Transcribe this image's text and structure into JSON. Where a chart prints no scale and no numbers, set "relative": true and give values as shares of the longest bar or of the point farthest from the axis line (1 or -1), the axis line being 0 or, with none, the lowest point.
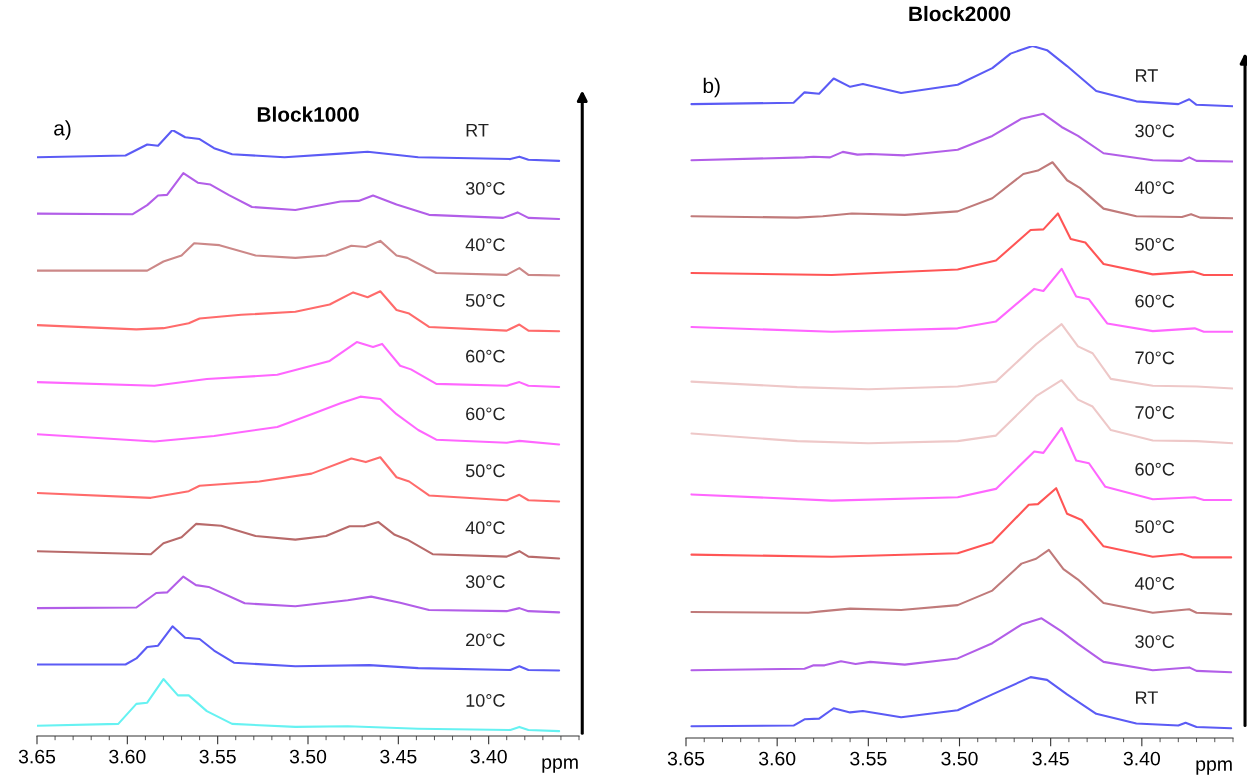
{
  "chart_data": [
    {
      "type": "line",
      "title": "Block1000",
      "xlabel": "ppm",
      "annotations": [
        "a)"
      ],
      "relative": true,
      "xlim": [
        3.65,
        3.35
      ],
      "xticks": [
        3.65,
        {
          "value": 3.6,
          "label": "3.60"
        },
        3.55,
        {
          "value": 3.5,
          "label": "3.50"
        },
        3.45,
        {
          "value": 3.4,
          "label": "3.40"
        }
      ],
      "series": [
        {
          "name": "RT",
          "color": "#5b5bf5",
          "x": [
            3.65,
            3.601,
            3.595,
            3.589,
            3.583,
            3.575,
            3.568,
            3.56,
            3.552,
            3.542,
            3.513,
            3.482,
            3.467,
            3.439,
            3.388,
            3.383,
            3.378,
            3.361
          ],
          "values": [
            0.955,
            0.958,
            0.967,
            0.976,
            0.974,
            1.0,
            0.988,
            0.985,
            0.97,
            0.96,
            0.955,
            0.961,
            0.964,
            0.955,
            0.952,
            0.956,
            0.951,
            0.949
          ]
        },
        {
          "name": "30°C",
          "color": "#b25ee8",
          "x": [
            3.65,
            3.597,
            3.589,
            3.583,
            3.578,
            3.569,
            3.561,
            3.554,
            3.544,
            3.531,
            3.507,
            3.482,
            3.472,
            3.464,
            3.451,
            3.433,
            3.392,
            3.384,
            3.378,
            3.361
          ],
          "values": [
            0.862,
            0.861,
            0.876,
            0.892,
            0.893,
            0.929,
            0.913,
            0.91,
            0.893,
            0.873,
            0.868,
            0.882,
            0.883,
            0.892,
            0.877,
            0.86,
            0.855,
            0.864,
            0.855,
            0.853
          ]
        },
        {
          "name": "40°C",
          "color": "#cc8888",
          "x": [
            3.65,
            3.589,
            3.58,
            3.57,
            3.563,
            3.549,
            3.529,
            3.507,
            3.49,
            3.476,
            3.468,
            3.46,
            3.451,
            3.445,
            3.429,
            3.39,
            3.383,
            3.378,
            3.361
          ],
          "values": [
            0.768,
            0.768,
            0.783,
            0.793,
            0.813,
            0.81,
            0.793,
            0.789,
            0.793,
            0.809,
            0.807,
            0.817,
            0.793,
            0.789,
            0.764,
            0.761,
            0.772,
            0.761,
            0.76
          ]
        },
        {
          "name": "50°C",
          "color": "#ff6b6b",
          "x": [
            3.65,
            3.595,
            3.58,
            3.566,
            3.56,
            3.537,
            3.507,
            3.488,
            3.475,
            3.467,
            3.46,
            3.451,
            3.444,
            3.433,
            3.39,
            3.383,
            3.378,
            3.361
          ],
          "values": [
            0.678,
            0.671,
            0.673,
            0.681,
            0.689,
            0.695,
            0.7,
            0.712,
            0.732,
            0.724,
            0.734,
            0.703,
            0.697,
            0.675,
            0.669,
            0.679,
            0.669,
            0.668
          ]
        },
        {
          "name": "60°C",
          "color": "#ff66ff",
          "x": [
            3.65,
            3.585,
            3.556,
            3.517,
            3.488,
            3.473,
            3.464,
            3.459,
            3.449,
            3.443,
            3.429,
            3.39,
            3.383,
            3.378,
            3.361
          ],
          "values": [
            0.584,
            0.578,
            0.589,
            0.596,
            0.619,
            0.65,
            0.642,
            0.647,
            0.611,
            0.605,
            0.581,
            0.578,
            0.584,
            0.578,
            0.576
          ]
        },
        {
          "name": "60°C",
          "color": "#ff66ff",
          "x": [
            3.65,
            3.585,
            3.552,
            3.517,
            3.498,
            3.482,
            3.471,
            3.46,
            3.451,
            3.439,
            3.429,
            3.39,
            3.383,
            3.361
          ],
          "values": [
            0.498,
            0.486,
            0.495,
            0.51,
            0.531,
            0.549,
            0.56,
            0.556,
            0.531,
            0.505,
            0.489,
            0.484,
            0.487,
            0.481
          ]
        },
        {
          "name": "50°C",
          "color": "#ff6b6b",
          "x": [
            3.65,
            3.587,
            3.566,
            3.56,
            3.527,
            3.498,
            3.476,
            3.468,
            3.46,
            3.451,
            3.444,
            3.433,
            3.39,
            3.383,
            3.378,
            3.361
          ],
          "values": [
            0.401,
            0.393,
            0.404,
            0.413,
            0.42,
            0.433,
            0.458,
            0.452,
            0.46,
            0.427,
            0.42,
            0.397,
            0.389,
            0.398,
            0.389,
            0.387
          ]
        },
        {
          "name": "40°C",
          "color": "#b86a6a",
          "x": [
            3.65,
            3.587,
            3.58,
            3.57,
            3.562,
            3.548,
            3.529,
            3.507,
            3.49,
            3.477,
            3.469,
            3.461,
            3.452,
            3.445,
            3.431,
            3.39,
            3.383,
            3.378,
            3.361
          ],
          "values": [
            0.305,
            0.3,
            0.318,
            0.328,
            0.35,
            0.347,
            0.33,
            0.324,
            0.33,
            0.346,
            0.346,
            0.353,
            0.332,
            0.324,
            0.3,
            0.296,
            0.305,
            0.296,
            0.293
          ]
        },
        {
          "name": "30°C",
          "color": "#b25ee8",
          "x": [
            3.65,
            3.595,
            3.584,
            3.578,
            3.569,
            3.562,
            3.555,
            3.535,
            3.507,
            3.478,
            3.465,
            3.449,
            3.433,
            3.39,
            3.383,
            3.378,
            3.361
          ],
          "values": [
            0.211,
            0.212,
            0.236,
            0.237,
            0.263,
            0.249,
            0.246,
            0.219,
            0.214,
            0.224,
            0.23,
            0.22,
            0.208,
            0.206,
            0.211,
            0.206,
            0.204
          ]
        },
        {
          "name": "20°C",
          "color": "#5b5bf5",
          "x": [
            3.65,
            3.601,
            3.595,
            3.589,
            3.583,
            3.575,
            3.568,
            3.56,
            3.552,
            3.541,
            3.507,
            3.466,
            3.439,
            3.388,
            3.383,
            3.378,
            3.361
          ],
          "values": [
            0.118,
            0.118,
            0.128,
            0.147,
            0.149,
            0.181,
            0.162,
            0.16,
            0.141,
            0.121,
            0.115,
            0.117,
            0.112,
            0.109,
            0.115,
            0.109,
            0.108
          ]
        },
        {
          "name": "10°C",
          "color": "#66f2f2",
          "x": [
            3.65,
            3.605,
            3.595,
            3.589,
            3.58,
            3.572,
            3.566,
            3.556,
            3.542,
            3.507,
            3.478,
            3.439,
            3.388,
            3.383,
            3.378,
            3.361
          ],
          "values": [
            0.017,
            0.02,
            0.053,
            0.055,
            0.094,
            0.067,
            0.067,
            0.041,
            0.02,
            0.015,
            0.016,
            0.012,
            0.01,
            0.015,
            0.01,
            0.008
          ]
        }
      ]
    },
    {
      "type": "line",
      "title": "Block2000",
      "xlabel": "ppm",
      "annotations": [
        "b)"
      ],
      "relative": true,
      "xlim": [
        3.65,
        3.35
      ],
      "xticks": [
        3.65,
        {
          "value": 3.6,
          "label": "3.60"
        },
        3.55,
        {
          "value": 3.5,
          "label": "3.50"
        },
        3.45,
        {
          "value": 3.4,
          "label": "3.40"
        }
      ],
      "series": [
        {
          "name": "RT",
          "color": "#5b5bf5",
          "x": [
            3.647,
            3.591,
            3.585,
            3.577,
            3.569,
            3.56,
            3.553,
            3.532,
            3.501,
            3.482,
            3.472,
            3.46,
            3.452,
            3.441,
            3.425,
            3.403,
            3.38,
            3.374,
            3.37,
            3.35
          ],
          "values": [
            0.916,
            0.918,
            0.933,
            0.931,
            0.953,
            0.941,
            0.945,
            0.932,
            0.944,
            0.968,
            0.989,
            1.0,
            0.994,
            0.971,
            0.935,
            0.92,
            0.916,
            0.923,
            0.915,
            0.913
          ]
        },
        {
          "name": "30°C",
          "color": "#b25ee8",
          "x": [
            3.647,
            3.585,
            3.58,
            3.571,
            3.564,
            3.556,
            3.549,
            3.53,
            3.501,
            3.482,
            3.466,
            3.454,
            3.444,
            3.435,
            3.421,
            3.394,
            3.378,
            3.374,
            3.37,
            3.35
          ],
          "values": [
            0.835,
            0.839,
            0.84,
            0.839,
            0.847,
            0.843,
            0.844,
            0.842,
            0.85,
            0.87,
            0.895,
            0.902,
            0.883,
            0.87,
            0.845,
            0.835,
            0.834,
            0.839,
            0.834,
            0.833
          ]
        },
        {
          "name": "40°C",
          "color": "#c07a7a",
          "x": [
            3.647,
            3.589,
            3.575,
            3.559,
            3.53,
            3.501,
            3.482,
            3.465,
            3.457,
            3.449,
            3.441,
            3.434,
            3.421,
            3.403,
            3.378,
            3.373,
            3.368,
            3.35
          ],
          "values": [
            0.754,
            0.752,
            0.754,
            0.758,
            0.756,
            0.761,
            0.78,
            0.815,
            0.82,
            0.832,
            0.806,
            0.795,
            0.765,
            0.754,
            0.753,
            0.757,
            0.752,
            0.751
          ]
        },
        {
          "name": "50°C",
          "color": "#ff5555",
          "x": [
            3.647,
            3.57,
            3.546,
            3.501,
            3.48,
            3.461,
            3.454,
            3.446,
            3.439,
            3.431,
            3.421,
            3.394,
            3.372,
            3.366,
            3.35
          ],
          "values": [
            0.672,
            0.669,
            0.672,
            0.677,
            0.69,
            0.734,
            0.735,
            0.758,
            0.721,
            0.716,
            0.685,
            0.67,
            0.674,
            0.669,
            0.669
          ]
        },
        {
          "name": "60°C",
          "color": "#ff66ff",
          "x": [
            3.647,
            3.57,
            3.501,
            3.48,
            3.459,
            3.454,
            3.444,
            3.436,
            3.429,
            3.419,
            3.394,
            3.371,
            3.366,
            3.35
          ],
          "values": [
            0.594,
            0.587,
            0.592,
            0.602,
            0.649,
            0.646,
            0.678,
            0.638,
            0.634,
            0.599,
            0.588,
            0.592,
            0.587,
            0.587
          ]
        },
        {
          "name": "70°C",
          "color": "#eec8c8",
          "x": [
            3.647,
            3.589,
            3.55,
            3.501,
            3.48,
            3.458,
            3.444,
            3.435,
            3.427,
            3.417,
            3.394,
            3.37,
            3.35
          ],
          "values": [
            0.515,
            0.507,
            0.504,
            0.508,
            0.515,
            0.569,
            0.598,
            0.566,
            0.556,
            0.519,
            0.509,
            0.508,
            0.505
          ]
        },
        {
          "name": "70°C",
          "color": "#eec8c8",
          "x": [
            3.647,
            3.589,
            3.55,
            3.501,
            3.48,
            3.458,
            3.444,
            3.435,
            3.427,
            3.417,
            3.394,
            3.37,
            3.35
          ],
          "values": [
            0.44,
            0.429,
            0.426,
            0.429,
            0.437,
            0.494,
            0.517,
            0.489,
            0.479,
            0.445,
            0.43,
            0.429,
            0.426
          ]
        },
        {
          "name": "60°C",
          "color": "#ff66ff",
          "x": [
            3.647,
            3.57,
            3.501,
            3.48,
            3.459,
            3.454,
            3.444,
            3.436,
            3.429,
            3.42,
            3.394,
            3.371,
            3.366,
            3.351
          ],
          "values": [
            0.352,
            0.343,
            0.348,
            0.36,
            0.414,
            0.412,
            0.448,
            0.401,
            0.397,
            0.363,
            0.345,
            0.348,
            0.344,
            0.344
          ]
        },
        {
          "name": "50°C",
          "color": "#ff5555",
          "x": [
            3.647,
            3.57,
            3.501,
            3.482,
            3.462,
            3.457,
            3.447,
            3.441,
            3.433,
            3.421,
            3.394,
            3.378,
            3.372,
            3.351
          ],
          "values": [
            0.265,
            0.262,
            0.267,
            0.283,
            0.337,
            0.338,
            0.361,
            0.324,
            0.315,
            0.277,
            0.262,
            0.266,
            0.261,
            0.261
          ]
        },
        {
          "name": "40°C",
          "color": "#c07a7a",
          "x": [
            3.647,
            3.583,
            3.576,
            3.56,
            3.532,
            3.501,
            3.482,
            3.466,
            3.458,
            3.451,
            3.443,
            3.435,
            3.421,
            3.394,
            3.374,
            3.37,
            3.351
          ],
          "values": [
            0.182,
            0.181,
            0.183,
            0.187,
            0.185,
            0.192,
            0.213,
            0.252,
            0.259,
            0.272,
            0.244,
            0.229,
            0.195,
            0.181,
            0.186,
            0.181,
            0.179
          ]
        },
        {
          "name": "30°C",
          "color": "#b25ee8",
          "x": [
            3.647,
            3.585,
            3.58,
            3.574,
            3.565,
            3.557,
            3.549,
            3.53,
            3.501,
            3.482,
            3.466,
            3.455,
            3.444,
            3.435,
            3.421,
            3.394,
            3.374,
            3.37,
            3.351
          ],
          "values": [
            0.098,
            0.1,
            0.105,
            0.105,
            0.111,
            0.107,
            0.11,
            0.106,
            0.115,
            0.137,
            0.164,
            0.173,
            0.154,
            0.136,
            0.11,
            0.098,
            0.102,
            0.097,
            0.095
          ]
        },
        {
          "name": "RT",
          "color": "#5b5bf5",
          "x": [
            3.647,
            3.591,
            3.585,
            3.577,
            3.569,
            3.56,
            3.553,
            3.532,
            3.501,
            3.482,
            3.461,
            3.452,
            3.441,
            3.425,
            3.403,
            3.38,
            3.376,
            3.37,
            3.351
          ],
          "values": [
            0.017,
            0.018,
            0.027,
            0.028,
            0.043,
            0.037,
            0.039,
            0.03,
            0.04,
            0.063,
            0.088,
            0.084,
            0.063,
            0.035,
            0.021,
            0.018,
            0.022,
            0.016,
            0.014
          ]
        }
      ]
    }
  ]
}
